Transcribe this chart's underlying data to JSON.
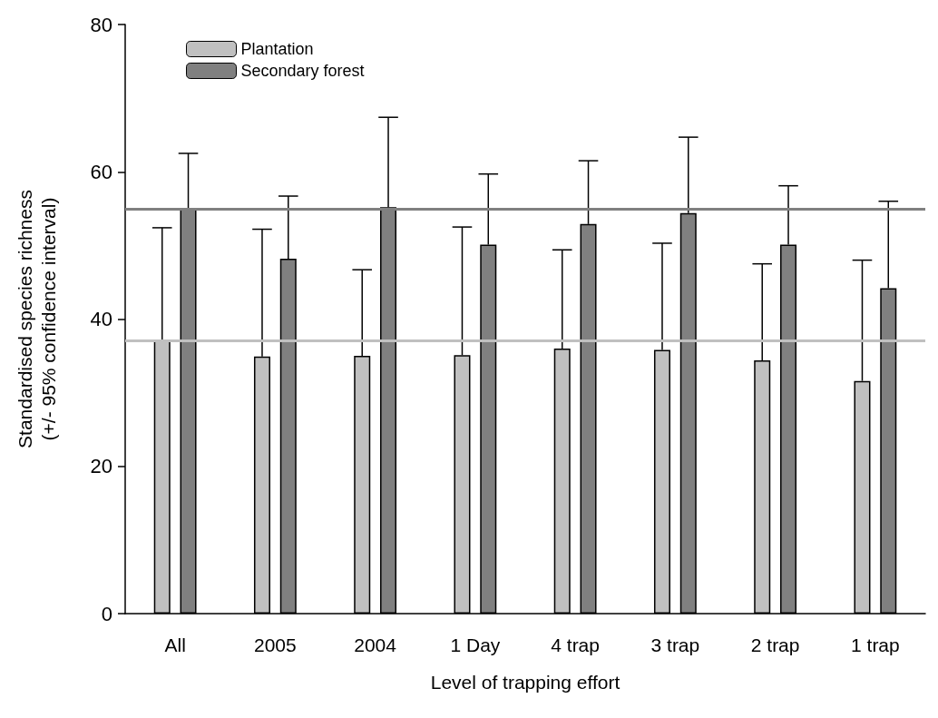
{
  "chart_data": {
    "type": "bar",
    "xlabel": "Level of trapping effort",
    "ylabel": "Standardised species richness\n(+/- 95% confidence interval)",
    "categories": [
      "All",
      "2005",
      "2004",
      "1 Day",
      "4 trap",
      "3 trap",
      "2 trap",
      "1 trap"
    ],
    "series": [
      {
        "name": "Plantation",
        "color": "#c0c0c0",
        "values": [
          37.1,
          34.9,
          35.0,
          35.1,
          36.0,
          35.8,
          34.4,
          31.6
        ],
        "errors": [
          [
            37.1,
            52.4
          ],
          [
            34.9,
            52.2
          ],
          [
            35.0,
            46.7
          ],
          [
            35.1,
            52.5
          ],
          [
            36.0,
            49.4
          ],
          [
            35.8,
            50.3
          ],
          [
            34.4,
            47.5
          ],
          [
            31.6,
            48.0
          ]
        ]
      },
      {
        "name": "Secondary forest",
        "color": "#808080",
        "values": [
          55.0,
          48.2,
          55.2,
          50.1,
          52.9,
          54.4,
          50.1,
          44.2
        ],
        "errors": [
          [
            55.0,
            62.5
          ],
          [
            48.2,
            56.7
          ],
          [
            55.2,
            67.4
          ],
          [
            50.1,
            59.7
          ],
          [
            52.9,
            61.5
          ],
          [
            54.4,
            64.7
          ],
          [
            50.1,
            58.1
          ],
          [
            44.2,
            56.0
          ]
        ]
      }
    ],
    "ylim": [
      0,
      80
    ],
    "yticks": [
      0,
      20,
      40,
      60,
      80
    ],
    "grid": false,
    "legend": "top left",
    "ref_lines": [
      {
        "axis": "y",
        "value": 55.0,
        "color": "#808080"
      },
      {
        "axis": "y",
        "value": 37.1,
        "color": "#c0c0c0"
      }
    ]
  }
}
